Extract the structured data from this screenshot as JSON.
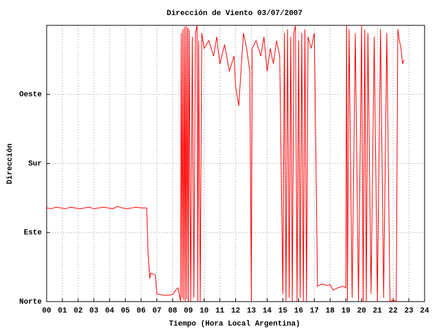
{
  "chart_data": {
    "type": "line",
    "title": "Dirección de Viento 03/07/2007",
    "x_label": "Tiempo (Hora Local Argentina)",
    "y_label": "Dirección",
    "xlim": [
      0,
      24
    ],
    "xticks": [
      {
        "value": 0,
        "label": "00"
      },
      {
        "value": 1,
        "label": "01"
      },
      {
        "value": 2,
        "label": "02"
      },
      {
        "value": 3,
        "label": "03"
      },
      {
        "value": 4,
        "label": "04"
      },
      {
        "value": 5,
        "label": "05"
      },
      {
        "value": 6,
        "label": "06"
      },
      {
        "value": 7,
        "label": "07"
      },
      {
        "value": 8,
        "label": "08"
      },
      {
        "value": 9,
        "label": "09"
      },
      {
        "value": 10,
        "label": "10"
      },
      {
        "value": 11,
        "label": "11"
      },
      {
        "value": 12,
        "label": "12"
      },
      {
        "value": 13,
        "label": "13"
      },
      {
        "value": 14,
        "label": "14"
      },
      {
        "value": 15,
        "label": "15"
      },
      {
        "value": 16,
        "label": "16"
      },
      {
        "value": 17,
        "label": "17"
      },
      {
        "value": 18,
        "label": "18"
      },
      {
        "value": 19,
        "label": "19"
      },
      {
        "value": 20,
        "label": "20"
      },
      {
        "value": 21,
        "label": "21"
      },
      {
        "value": 22,
        "label": "22"
      },
      {
        "value": 23,
        "label": "23"
      },
      {
        "value": 24,
        "label": "24"
      }
    ],
    "ylim": [
      0,
      360
    ],
    "yticks": [
      {
        "value": 0,
        "label": "Norte"
      },
      {
        "value": 90,
        "label": "Este"
      },
      {
        "value": 180,
        "label": "Sur"
      },
      {
        "value": 270,
        "label": "Oeste"
      }
    ],
    "grid": true,
    "x": [
      0,
      0.3,
      0.6,
      0.9,
      1.2,
      1.5,
      1.8,
      2.1,
      2.4,
      2.7,
      3.0,
      3.3,
      3.6,
      3.9,
      4.2,
      4.5,
      4.8,
      5.1,
      5.4,
      5.7,
      6.0,
      6.35,
      6.45,
      6.55,
      6.6,
      6.9,
      7.0,
      7.5,
      8.0,
      8.2,
      8.35,
      8.5,
      8.55,
      8.6,
      8.65,
      8.7,
      8.75,
      8.8,
      8.85,
      8.9,
      8.95,
      9.0,
      9.05,
      9.15,
      9.25,
      9.35,
      9.45,
      9.55,
      9.6,
      9.65,
      9.75,
      9.85,
      10.0,
      10.3,
      10.6,
      10.8,
      11.0,
      11.3,
      11.6,
      11.9,
      12.0,
      12.2,
      12.4,
      12.5,
      12.7,
      12.9,
      13.0,
      13.05,
      13.3,
      13.6,
      13.8,
      14.0,
      14.2,
      14.4,
      14.6,
      14.8,
      15.0,
      15.1,
      15.2,
      15.3,
      15.4,
      15.5,
      15.6,
      15.7,
      15.8,
      15.9,
      16.0,
      16.1,
      16.2,
      16.3,
      16.4,
      16.5,
      16.6,
      16.8,
      17.0,
      17.2,
      17.5,
      17.8,
      18.0,
      18.2,
      18.5,
      18.8,
      19.0,
      19.05,
      19.1,
      19.2,
      19.4,
      19.6,
      19.8,
      20.0,
      20.1,
      20.2,
      20.3,
      20.4,
      20.6,
      20.8,
      21.0,
      21.2,
      21.4,
      21.6,
      21.8,
      22.0,
      22.2,
      22.3,
      22.4,
      22.5,
      22.6,
      22.7
    ],
    "series": [
      {
        "color": "#ff0000",
        "values": [
          122,
          121,
          123,
          122,
          121,
          123,
          122,
          121,
          122,
          123,
          121,
          122,
          123,
          122,
          121,
          124,
          122,
          121,
          122,
          123,
          122,
          122,
          60,
          30,
          37,
          35,
          10,
          8,
          9,
          15,
          18,
          0,
          350,
          5,
          355,
          2,
          358,
          0,
          360,
          3,
          357,
          0,
          355,
          0,
          345,
          5,
          350,
          360,
          0,
          340,
          0,
          350,
          330,
          340,
          320,
          345,
          310,
          335,
          300,
          320,
          280,
          255,
          320,
          350,
          330,
          300,
          0,
          330,
          340,
          320,
          345,
          300,
          330,
          310,
          340,
          320,
          10,
          350,
          0,
          355,
          5,
          345,
          0,
          350,
          360,
          0,
          340,
          5,
          350,
          0,
          355,
          0,
          345,
          330,
          350,
          20,
          23,
          21,
          22,
          15,
          18,
          20,
          18,
          360,
          0,
          355,
          5,
          350,
          0,
          360,
          0,
          355,
          0,
          350,
          10,
          345,
          0,
          355,
          5,
          350,
          0,
          2,
          0,
          355,
          340,
          330,
          310,
          315
        ]
      }
    ]
  }
}
